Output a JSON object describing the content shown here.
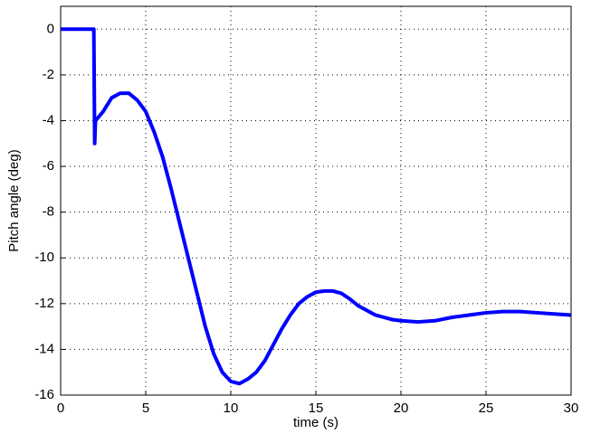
{
  "chart_data": {
    "type": "line",
    "xlabel": "time (s)",
    "ylabel": "Pitch angle (deg)",
    "xlim": [
      0,
      30
    ],
    "ylim": [
      -16,
      1
    ],
    "xticks": [
      0,
      5,
      10,
      15,
      20,
      25,
      30
    ],
    "yticks": [
      -16,
      -14,
      -12,
      -10,
      -8,
      -6,
      -4,
      -2,
      0
    ],
    "grid": true,
    "series": [
      {
        "name": "Pitch angle",
        "color": "#0000ff",
        "x": [
          0,
          1.95,
          2.0,
          2.05,
          2.5,
          3,
          3.5,
          4,
          4.5,
          5,
          5.5,
          6,
          6.5,
          7,
          7.5,
          8,
          8.5,
          9,
          9.5,
          10,
          10.5,
          11,
          11.5,
          12,
          12.5,
          13,
          13.5,
          14,
          14.5,
          15,
          15.5,
          16,
          16.5,
          17,
          17.5,
          18,
          18.5,
          19,
          19.5,
          20,
          21,
          22,
          23,
          24,
          25,
          26,
          27,
          28,
          29,
          30
        ],
        "values": [
          0,
          0,
          -5,
          -4,
          -3.6,
          -3.0,
          -2.8,
          -2.8,
          -3.1,
          -3.6,
          -4.5,
          -5.6,
          -7.0,
          -8.5,
          -10.0,
          -11.5,
          -13.0,
          -14.2,
          -15.0,
          -15.4,
          -15.5,
          -15.3,
          -15.0,
          -14.5,
          -13.8,
          -13.1,
          -12.5,
          -12.0,
          -11.7,
          -11.5,
          -11.45,
          -11.45,
          -11.55,
          -11.8,
          -12.1,
          -12.3,
          -12.5,
          -12.6,
          -12.7,
          -12.75,
          -12.8,
          -12.75,
          -12.6,
          -12.5,
          -12.4,
          -12.35,
          -12.35,
          -12.4,
          -12.45,
          -12.5
        ]
      }
    ]
  }
}
